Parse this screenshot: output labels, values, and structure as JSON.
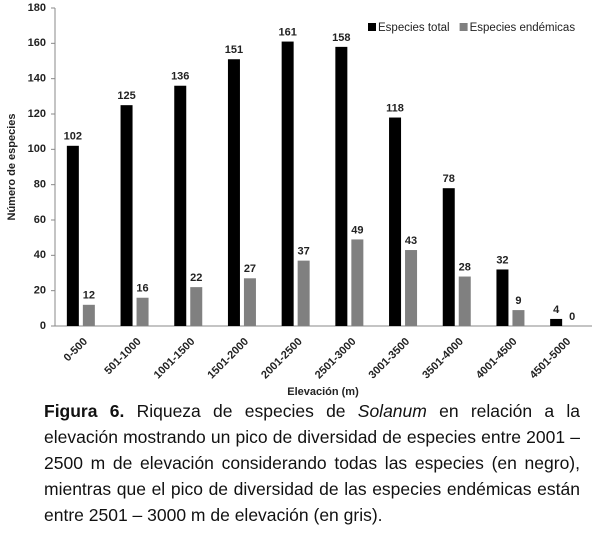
{
  "chart_data": {
    "type": "bar",
    "xlabel": "Elevación (m)",
    "ylabel": "Número de especies",
    "categories": [
      "0-500",
      "501-1000",
      "1001-1500",
      "1501-2000",
      "2001-2500",
      "2501-3000",
      "3001-3500",
      "3501-4000",
      "4001-4500",
      "4501-5000"
    ],
    "series": [
      {
        "name": "Especies total",
        "color": "#000000",
        "values": [
          102,
          125,
          136,
          151,
          161,
          158,
          118,
          78,
          32,
          4
        ]
      },
      {
        "name": "Especies endémicas",
        "color": "#808080",
        "values": [
          12,
          16,
          22,
          27,
          37,
          49,
          43,
          28,
          9,
          0
        ]
      }
    ],
    "ylim": [
      0,
      180
    ],
    "yticks": [
      0,
      20,
      40,
      60,
      80,
      100,
      120,
      140,
      160,
      180
    ],
    "grid": false,
    "legend": "upper right"
  },
  "caption": {
    "label": "Figura 6.",
    "text_before": "Riqueza de especies de",
    "italic": "Solanum",
    "text_after": "en relación a la elevación mostrando un pico de diversidad de especies entre 2001 – 2500 m de elevación considerando todas las especies (en negro), mientras que el pico de diversidad de las especies endémicas están entre 2501 – 3000 m de elevación (en gris)."
  }
}
